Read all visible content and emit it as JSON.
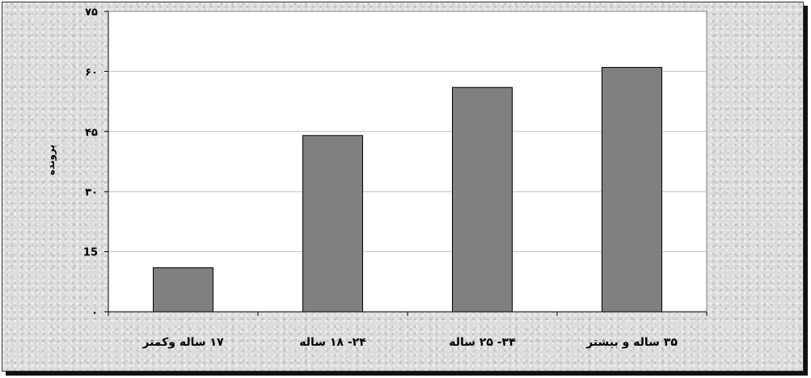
{
  "chart_data": {
    "type": "bar",
    "title": "",
    "xlabel": "",
    "ylabel": "پرونده",
    "categories": [
      "۱۷ ساله وکمتر",
      "۲۴- ۱۸ ساله",
      "۳۴- ۲۵ ساله",
      "۳۵ ساله و بیشتر"
    ],
    "values": [
      11,
      44,
      56,
      61
    ],
    "ylim": [
      0,
      75
    ],
    "yticks": [
      0,
      15,
      30,
      45,
      60,
      75
    ],
    "ytick_labels": [
      "۰",
      "15",
      "۳۰",
      "۴۵",
      "۶۰",
      "۷۵"
    ],
    "grid": true,
    "legend": "none",
    "bar_color": "#808080",
    "plot_background": "#ffffff"
  }
}
